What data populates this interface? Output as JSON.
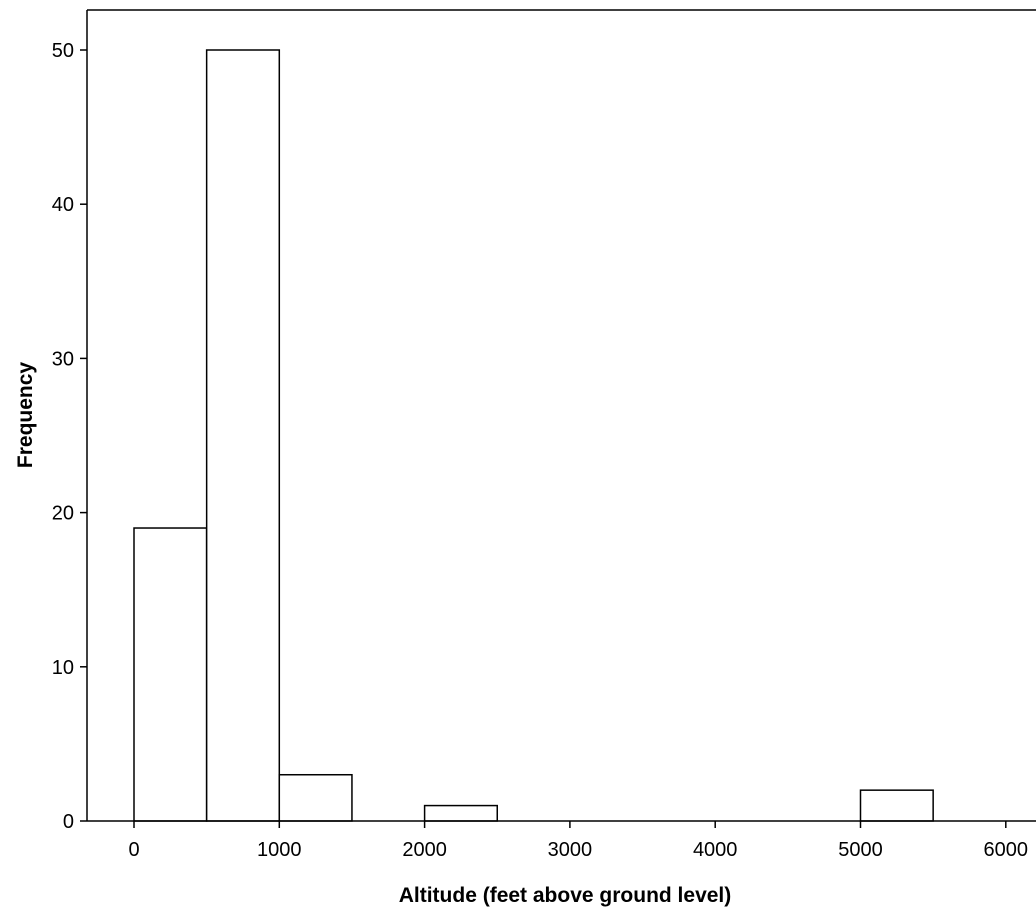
{
  "chart_data": {
    "type": "bar",
    "title": "",
    "xlabel": "Altitude (feet above ground level)",
    "ylabel": "Frequency",
    "bin_width": 500,
    "bins": [
      {
        "x_start": 0,
        "x_end": 500,
        "value": 19
      },
      {
        "x_start": 500,
        "x_end": 1000,
        "value": 50
      },
      {
        "x_start": 1000,
        "x_end": 1500,
        "value": 3
      },
      {
        "x_start": 2000,
        "x_end": 2500,
        "value": 1
      },
      {
        "x_start": 5000,
        "x_end": 5500,
        "value": 2
      }
    ],
    "xlim": [
      -325,
      6300
    ],
    "ylim": [
      0,
      52
    ],
    "x_ticks": [
      0,
      1000,
      2000,
      3000,
      4000,
      5000,
      6000
    ],
    "x_tick_labels": [
      "0",
      "1000",
      "2000",
      "3000",
      "4000",
      "5000",
      "6000"
    ],
    "y_ticks": [
      0,
      10,
      20,
      30,
      40,
      50
    ],
    "y_tick_labels": [
      "0",
      "10",
      "20",
      "30",
      "40",
      "50"
    ],
    "grid": false,
    "legend": "none",
    "colors": {
      "bar_fill": "#ffffff",
      "bar_stroke": "#000000",
      "axis": "#000000"
    }
  }
}
